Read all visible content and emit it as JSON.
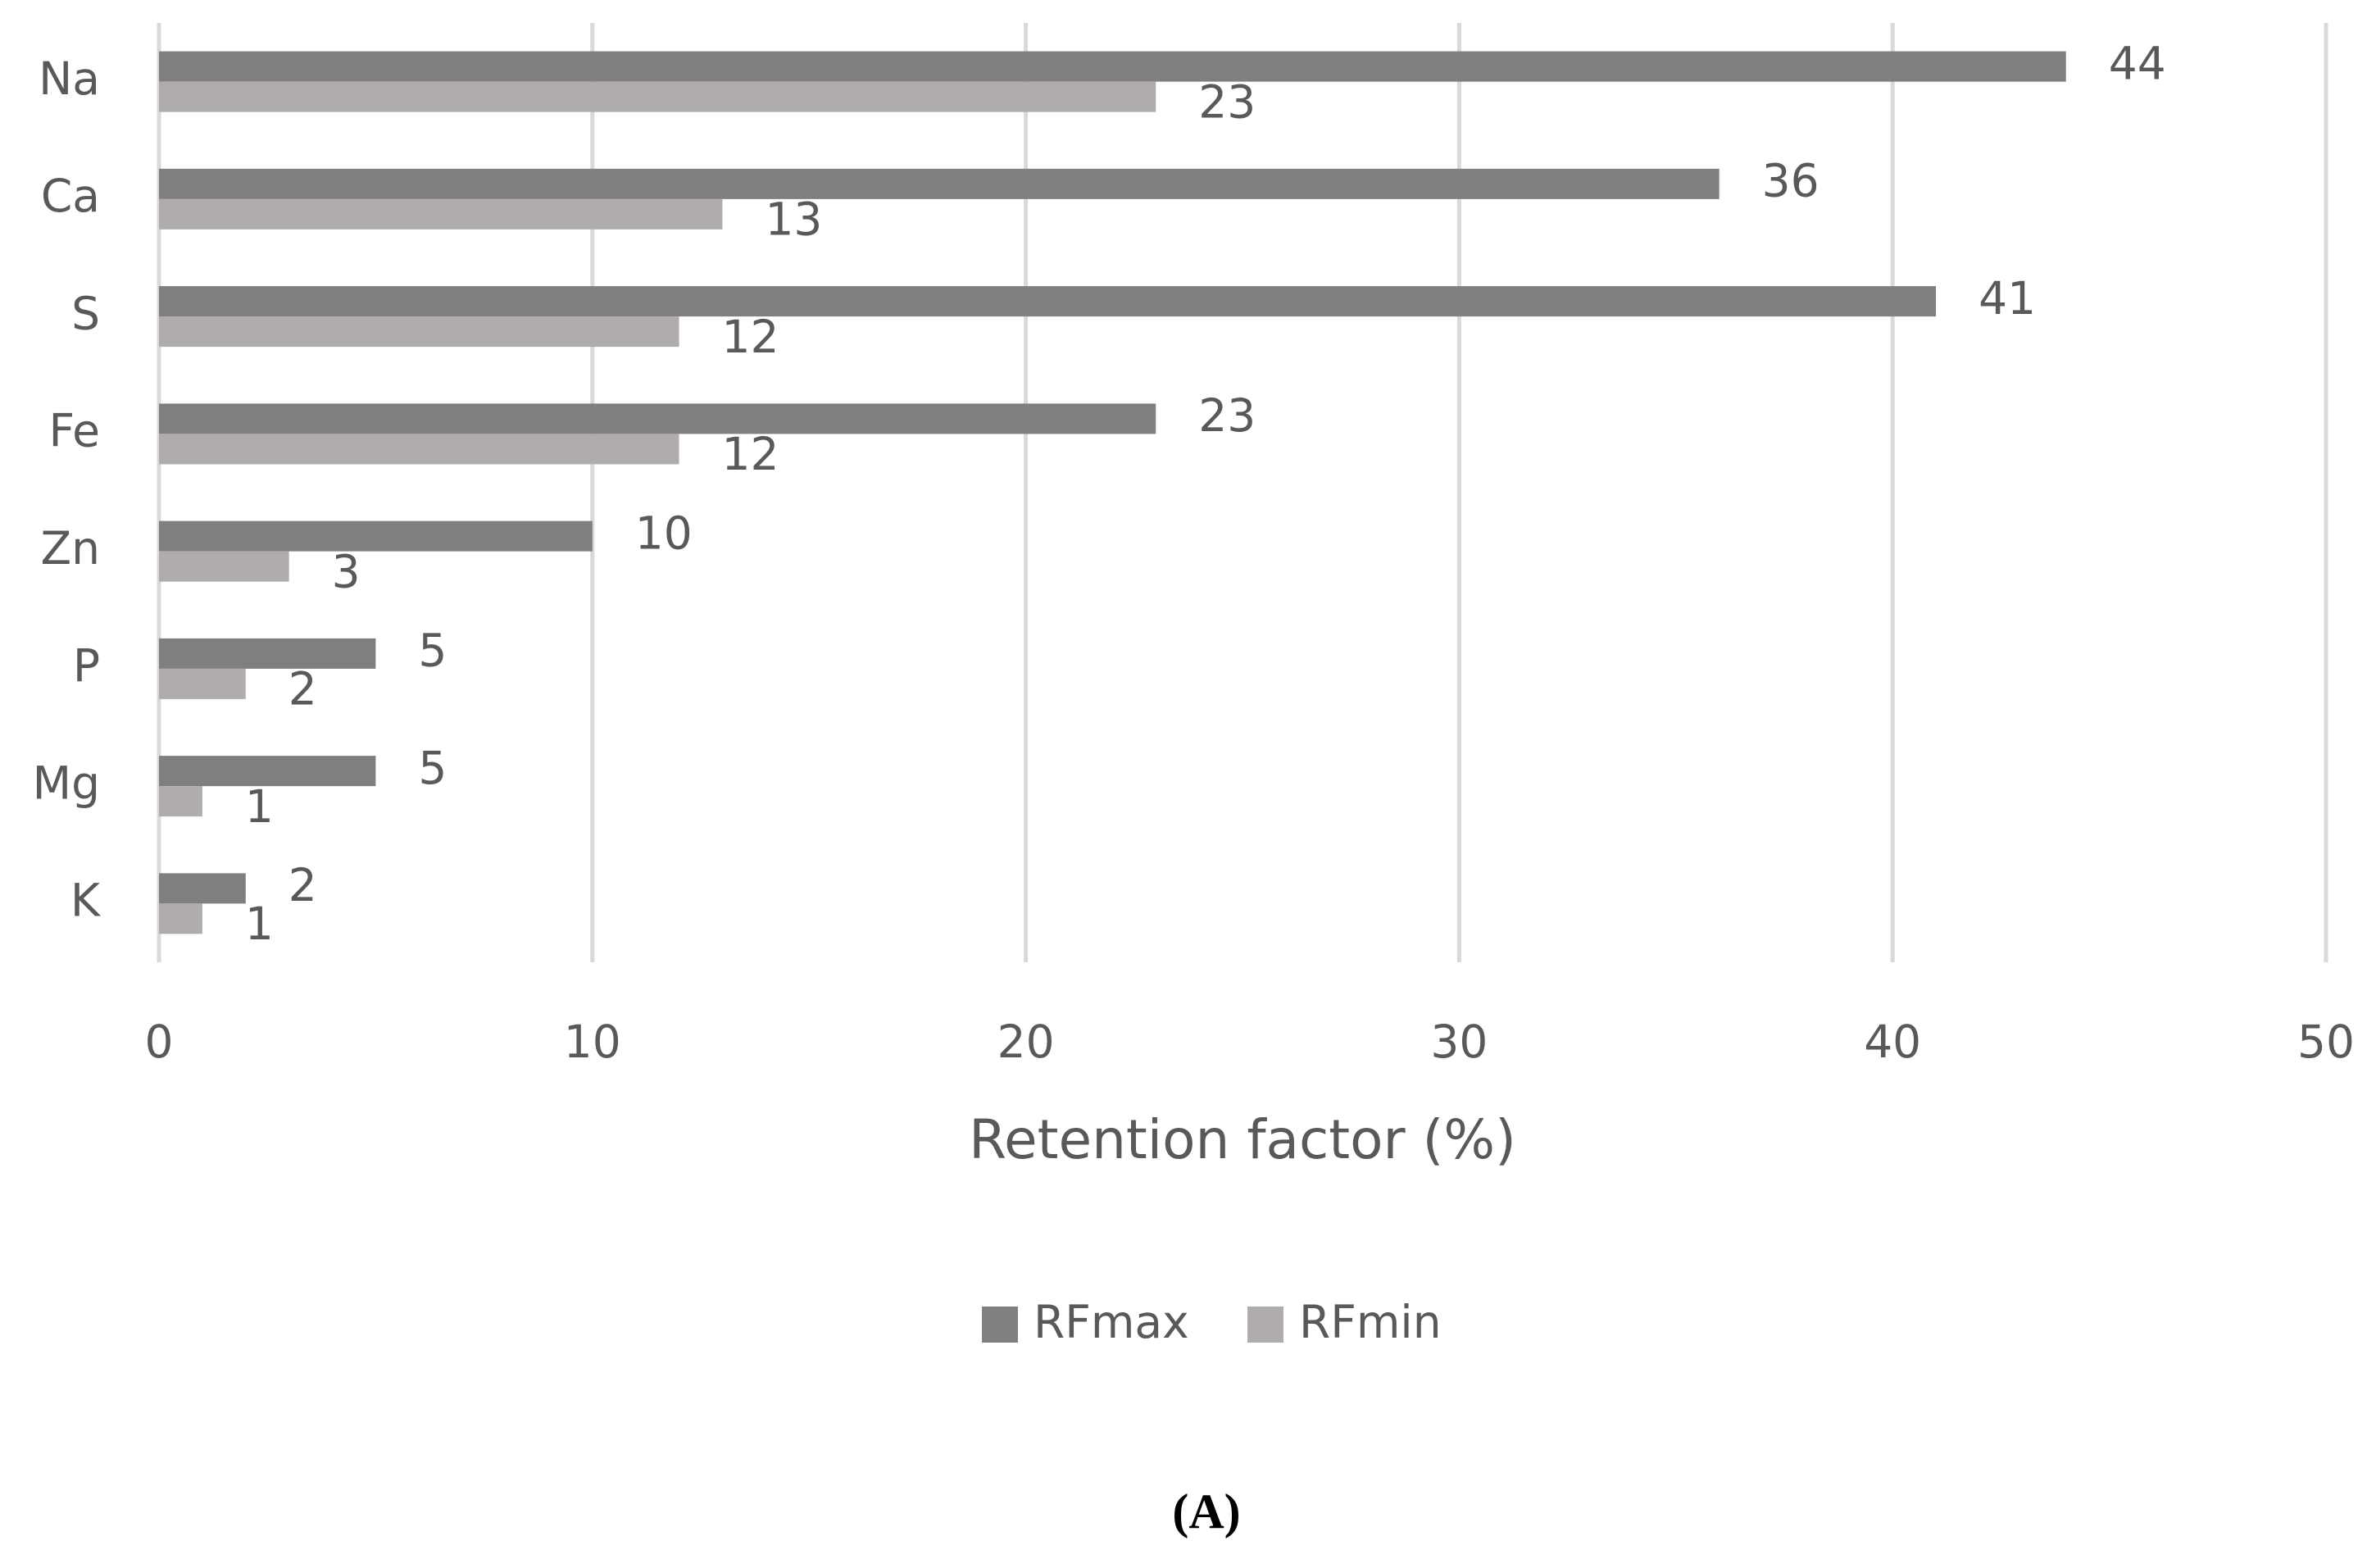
{
  "chart_data": {
    "type": "hbar",
    "categories": [
      "Na",
      "Ca",
      "S",
      "Fe",
      "Zn",
      "P",
      "Mg",
      "K"
    ],
    "series": [
      {
        "name": "RFmax",
        "color": "#7f7f7f",
        "values": [
          44,
          36,
          41,
          23,
          10,
          5,
          5,
          2
        ]
      },
      {
        "name": "RFmin",
        "color": "#b0acac",
        "values": [
          23,
          13,
          12,
          12,
          3,
          2,
          1,
          1
        ]
      }
    ],
    "xlim": [
      0,
      50
    ],
    "xticks": [
      0,
      10,
      20,
      30,
      40,
      50
    ],
    "grid": true,
    "x_label": "Retention factor (%)",
    "legend": "bottom",
    "caption": "(A)"
  }
}
